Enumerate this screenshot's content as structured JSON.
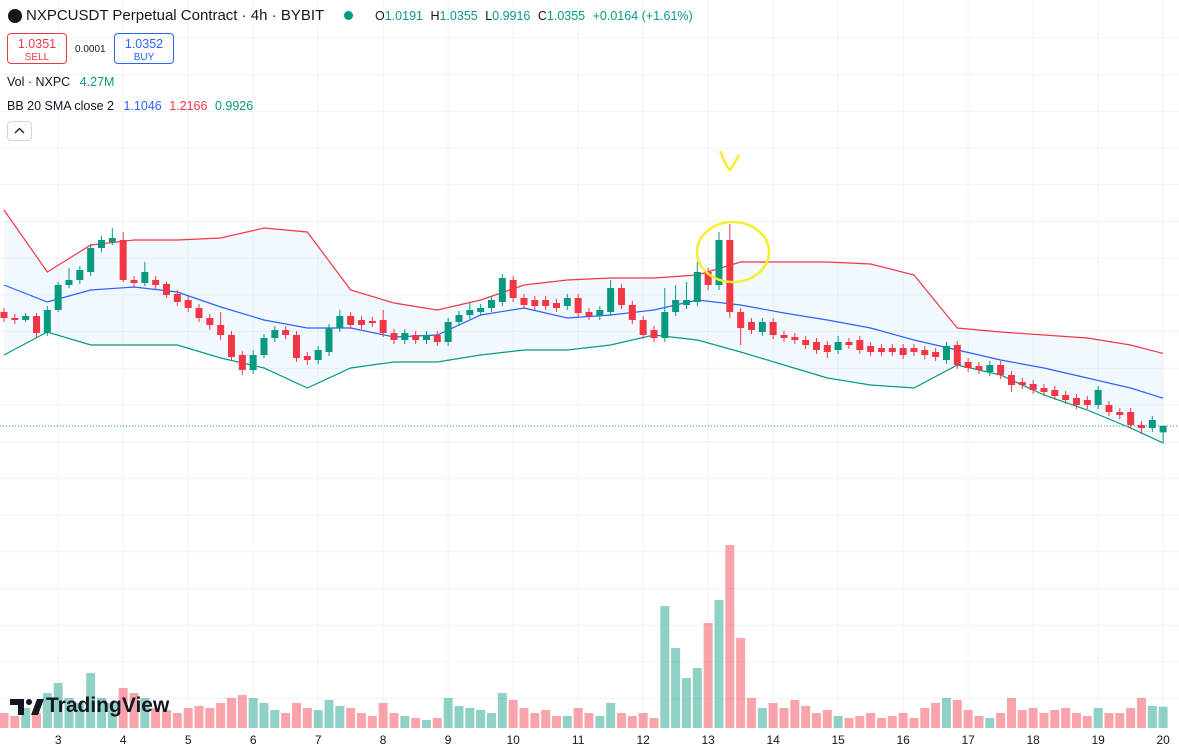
{
  "header": {
    "title": "NXPCUSDT Perpetual Contract · 4h · BYBIT",
    "ohlc_labels": [
      "O",
      "H",
      "L",
      "C"
    ],
    "change": "+0.0164 (+1.61%)"
  },
  "trade": {
    "sell_price": 1.0351,
    "sell_label": "SELL",
    "spread": 0.0001,
    "buy_price": 1.0352,
    "buy_label": "BUY"
  },
  "branding": "TradingView",
  "chart_data": {
    "type": "candlestick",
    "volume_label": "Vol · NXPC",
    "volume_value_label": "4.27M",
    "up_color": "#089981",
    "down_color": "#f23645",
    "ylim": [
      0.28,
      2.1
    ],
    "vlim": [
      0,
      40
    ],
    "grid": true,
    "categories": [
      null,
      null,
      null,
      null,
      null,
      "3",
      null,
      null,
      null,
      null,
      null,
      "4",
      null,
      null,
      null,
      null,
      null,
      "5",
      null,
      null,
      null,
      null,
      null,
      "6",
      null,
      null,
      null,
      null,
      null,
      "7",
      null,
      null,
      null,
      null,
      null,
      "8",
      null,
      null,
      null,
      null,
      null,
      "9",
      null,
      null,
      null,
      null,
      null,
      "10",
      null,
      null,
      null,
      null,
      null,
      "11",
      null,
      null,
      null,
      null,
      null,
      "12",
      null,
      null,
      null,
      null,
      null,
      "13",
      null,
      null,
      null,
      null,
      null,
      "14",
      null,
      null,
      null,
      null,
      null,
      "15",
      null,
      null,
      null,
      null,
      null,
      "16",
      null,
      null,
      null,
      null,
      null,
      "17",
      null,
      null,
      null,
      null,
      null,
      "18",
      null,
      null,
      null,
      null,
      null,
      "19",
      null,
      null,
      null,
      null,
      null,
      "20"
    ],
    "open": [
      1.32,
      1.305,
      1.3,
      1.31,
      1.2675,
      1.325,
      1.3875,
      1.4,
      1.42,
      1.48,
      1.495,
      1.5,
      1.4,
      1.3925,
      1.4,
      1.39,
      1.365,
      1.35,
      1.33,
      1.305,
      1.2875,
      1.2625,
      1.2125,
      1.175,
      1.2125,
      1.255,
      1.275,
      1.2625,
      1.21,
      1.2,
      1.22,
      1.28,
      1.31,
      1.3,
      1.2975,
      1.3,
      1.2675,
      1.25,
      1.2625,
      1.25,
      1.2625,
      1.245,
      1.295,
      1.3125,
      1.32,
      1.33,
      1.345,
      1.4,
      1.355,
      1.35,
      1.35,
      1.3425,
      1.335,
      1.355,
      1.32,
      1.31,
      1.32,
      1.38,
      1.3375,
      1.3,
      1.275,
      1.255,
      1.32,
      1.3375,
      1.345,
      1.42,
      1.3875,
      1.5,
      1.32,
      1.295,
      1.27,
      1.295,
      1.2625,
      1.2575,
      1.25,
      1.245,
      1.2375,
      1.225,
      1.245,
      1.25,
      1.235,
      1.23,
      1.23,
      1.23,
      1.23,
      1.225,
      1.22,
      1.2,
      1.2375,
      1.195,
      1.185,
      1.17,
      1.1875,
      1.1625,
      1.145,
      1.14,
      1.13,
      1.125,
      1.1125,
      1.105,
      1.1,
      1.0875,
      1.0875,
      1.07,
      1.07,
      1.0375,
      1.03,
      1.0191
    ],
    "high": [
      1.33,
      1.315,
      1.3175,
      1.3175,
      1.335,
      1.395,
      1.43,
      1.435,
      1.49,
      1.51,
      1.53,
      1.52,
      1.41,
      1.445,
      1.41,
      1.395,
      1.375,
      1.36,
      1.34,
      1.315,
      1.32,
      1.2725,
      1.2225,
      1.225,
      1.265,
      1.285,
      1.285,
      1.2725,
      1.22,
      1.235,
      1.29,
      1.325,
      1.32,
      1.31,
      1.3075,
      1.325,
      1.2775,
      1.2775,
      1.2725,
      1.2725,
      1.2725,
      1.305,
      1.3225,
      1.345,
      1.34,
      1.36,
      1.415,
      1.41,
      1.365,
      1.36,
      1.36,
      1.3525,
      1.365,
      1.365,
      1.33,
      1.335,
      1.4,
      1.39,
      1.3475,
      1.31,
      1.285,
      1.38,
      1.3875,
      1.395,
      1.445,
      1.43,
      1.52,
      1.54,
      1.33,
      1.305,
      1.305,
      1.305,
      1.2725,
      1.2675,
      1.26,
      1.255,
      1.2475,
      1.26,
      1.255,
      1.26,
      1.245,
      1.24,
      1.24,
      1.24,
      1.24,
      1.235,
      1.23,
      1.245,
      1.2475,
      1.205,
      1.195,
      1.1975,
      1.1975,
      1.1725,
      1.155,
      1.15,
      1.14,
      1.135,
      1.1225,
      1.115,
      1.11,
      1.135,
      1.0975,
      1.08,
      1.08,
      1.0475,
      1.06,
      1.0355
    ],
    "low": [
      1.295,
      1.29,
      1.295,
      1.255,
      1.26,
      1.32,
      1.38,
      1.39,
      1.41,
      1.47,
      1.4875,
      1.395,
      1.38,
      1.385,
      1.375,
      1.355,
      1.335,
      1.32,
      1.295,
      1.275,
      1.25,
      1.2,
      1.1625,
      1.165,
      1.205,
      1.245,
      1.2525,
      1.195,
      1.1875,
      1.19,
      1.21,
      1.27,
      1.2775,
      1.2775,
      1.2825,
      1.2575,
      1.24,
      1.24,
      1.24,
      1.24,
      1.235,
      1.235,
      1.285,
      1.3025,
      1.31,
      1.32,
      1.335,
      1.345,
      1.3275,
      1.325,
      1.325,
      1.32,
      1.325,
      1.3075,
      1.3,
      1.3,
      1.31,
      1.3275,
      1.29,
      1.2525,
      1.245,
      1.245,
      1.31,
      1.3275,
      1.335,
      1.375,
      1.375,
      1.305,
      1.2375,
      1.265,
      1.26,
      1.2525,
      1.245,
      1.24,
      1.2275,
      1.215,
      1.205,
      1.215,
      1.2275,
      1.215,
      1.21,
      1.21,
      1.21,
      1.2025,
      1.21,
      1.2025,
      1.1975,
      1.19,
      1.1775,
      1.17,
      1.165,
      1.16,
      1.1525,
      1.12,
      1.1275,
      1.115,
      1.11,
      1.1,
      1.09,
      1.0775,
      1.0775,
      1.0775,
      1.06,
      1.0525,
      1.0275,
      1.015,
      1.02,
      0.9916
    ],
    "close": [
      1.305,
      1.3,
      1.31,
      1.2675,
      1.325,
      1.3875,
      1.4,
      1.425,
      1.48,
      1.5,
      1.505,
      1.4,
      1.3925,
      1.42,
      1.3875,
      1.3625,
      1.345,
      1.33,
      1.305,
      1.2875,
      1.2625,
      1.2075,
      1.175,
      1.2125,
      1.255,
      1.275,
      1.2625,
      1.205,
      1.2,
      1.225,
      1.28,
      1.31,
      1.2875,
      1.2875,
      1.2925,
      1.2675,
      1.25,
      1.2675,
      1.25,
      1.2625,
      1.245,
      1.295,
      1.3125,
      1.325,
      1.33,
      1.35,
      1.405,
      1.355,
      1.3375,
      1.335,
      1.335,
      1.33,
      1.355,
      1.3175,
      1.31,
      1.325,
      1.38,
      1.3375,
      1.3,
      1.2625,
      1.255,
      1.32,
      1.35,
      1.35,
      1.42,
      1.3875,
      1.5,
      1.32,
      1.28,
      1.275,
      1.295,
      1.2625,
      1.255,
      1.25,
      1.2375,
      1.225,
      1.22,
      1.245,
      1.2375,
      1.225,
      1.22,
      1.22,
      1.22,
      1.2125,
      1.22,
      1.2125,
      1.2075,
      1.235,
      1.1875,
      1.18,
      1.175,
      1.1875,
      1.1625,
      1.1375,
      1.1375,
      1.125,
      1.12,
      1.11,
      1.1,
      1.0875,
      1.0875,
      1.125,
      1.07,
      1.0625,
      1.0375,
      1.03,
      1.05,
      1.0355
    ],
    "volume": [
      3,
      2.4,
      4,
      3,
      7,
      9,
      6,
      5,
      11,
      6,
      5,
      8,
      7,
      6,
      4,
      3.6,
      3,
      4,
      4.4,
      4,
      5,
      6,
      6.6,
      6,
      5,
      3.6,
      3,
      5,
      4,
      3.6,
      5.6,
      4.4,
      4,
      3,
      2.4,
      5,
      3,
      2.4,
      2,
      1.6,
      2,
      6,
      4.4,
      4,
      3.6,
      3,
      7,
      5.6,
      4,
      3,
      3.6,
      2.4,
      2.4,
      4,
      3,
      2.4,
      5,
      3,
      2.4,
      3,
      2,
      24.4,
      16,
      10,
      12,
      21,
      25.6,
      36.6,
      18,
      6,
      4,
      5,
      4,
      5.6,
      4.4,
      3,
      3.6,
      2.4,
      2,
      2.4,
      3,
      2,
      2.4,
      3,
      2,
      4,
      5,
      6,
      5.6,
      3.6,
      2.4,
      2,
      3,
      6,
      3.6,
      4,
      3,
      3.6,
      4,
      3,
      2.4,
      4,
      3,
      3,
      4,
      6,
      4.4,
      4.27
    ],
    "bollinger": {
      "label": "BB 20 SMA close 2",
      "x": [
        0,
        4,
        8,
        12,
        16,
        20,
        24,
        28,
        32,
        36,
        40,
        44,
        48,
        52,
        56,
        60,
        64,
        68,
        72,
        76,
        80,
        84,
        88,
        92,
        96,
        100,
        104,
        107
      ],
      "fill": "rgba(33,150,243,0.06)",
      "series": [
        {
          "color": "#2962ff",
          "values": [
            1.3875,
            1.345,
            1.375,
            1.3825,
            1.37,
            1.3325,
            1.3,
            1.28,
            1.28,
            1.2575,
            1.2625,
            1.3125,
            1.33,
            1.305,
            1.3125,
            1.325,
            1.35,
            1.3375,
            1.3175,
            1.3,
            1.28,
            1.25,
            1.225,
            1.2,
            1.18,
            1.155,
            1.13,
            1.1046
          ]
        },
        {
          "color": "#f23645",
          "values": [
            1.575,
            1.42,
            1.4875,
            1.5,
            1.5,
            1.505,
            1.53,
            1.52,
            1.375,
            1.3425,
            1.325,
            1.35,
            1.3875,
            1.4,
            1.405,
            1.405,
            1.4125,
            1.445,
            1.445,
            1.445,
            1.44,
            1.4125,
            1.28,
            1.27,
            1.2625,
            1.255,
            1.2375,
            1.2166
          ]
        },
        {
          "color": "#089981",
          "values": [
            1.2125,
            1.27,
            1.2375,
            1.2375,
            1.2375,
            1.205,
            1.18,
            1.13,
            1.18,
            1.195,
            1.195,
            1.2125,
            1.225,
            1.225,
            1.2375,
            1.2625,
            1.25,
            1.22,
            1.1875,
            1.155,
            1.1375,
            1.13,
            1.1875,
            1.1625,
            1.1125,
            1.075,
            1.03,
            0.9926
          ]
        }
      ]
    }
  }
}
